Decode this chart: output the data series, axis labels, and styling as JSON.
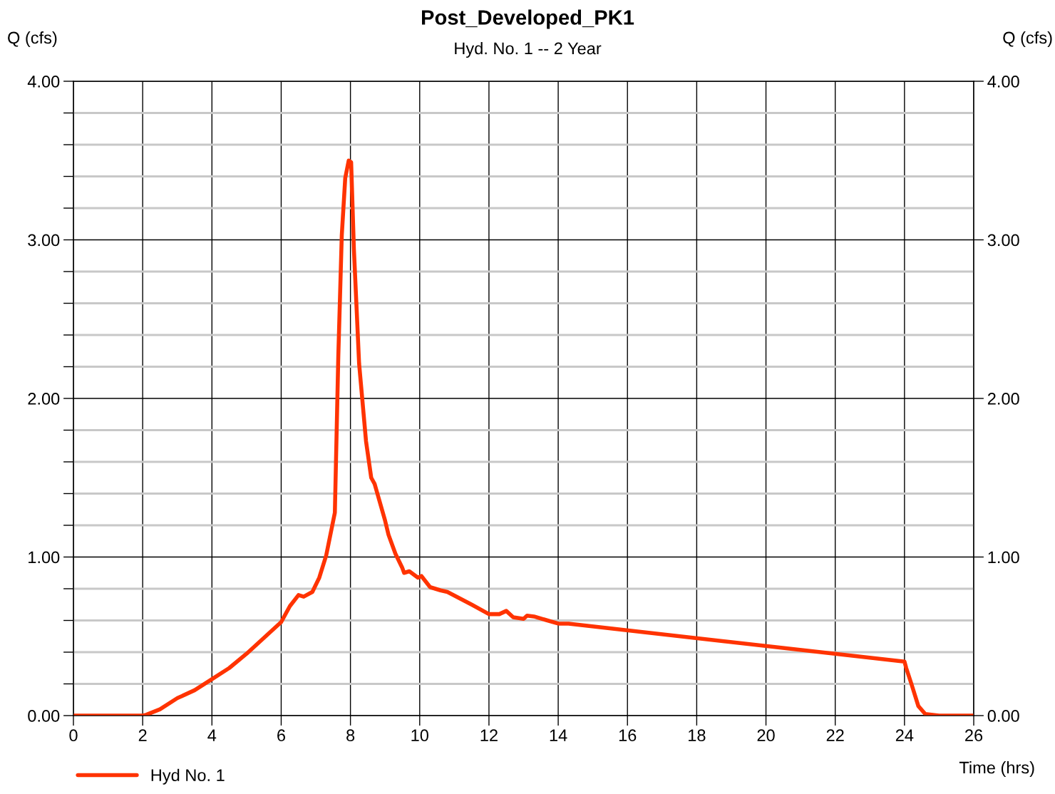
{
  "chart_data": {
    "type": "line",
    "title": "Post_Developed_PK1",
    "subtitle": "Hyd. No. 1 -- 2 Year",
    "xlabel": "Time (hrs)",
    "ylabel": "Q (cfs)",
    "y2label": "Q (cfs)",
    "x": [
      0,
      2.0,
      2.1,
      2.5,
      3,
      3.5,
      4,
      4.5,
      5,
      5.5,
      6,
      6.25,
      6.5,
      6.65,
      6.9,
      7.1,
      7.3,
      7.55,
      7.65,
      7.75,
      7.85,
      7.95,
      8.02,
      8.1,
      8.25,
      8.45,
      8.6,
      8.7,
      9.0,
      9.1,
      9.3,
      9.5,
      9.55,
      9.7,
      9.95,
      10.05,
      10.3,
      10.6,
      10.8,
      11.5,
      12,
      12.3,
      12.5,
      12.7,
      13.0,
      13.1,
      13.3,
      14,
      14.3,
      24.0,
      24.05,
      24.2,
      24.4,
      24.6,
      25,
      26
    ],
    "series": [
      {
        "name": "Hyd No. 1",
        "color": "#ff3300",
        "values": [
          0,
          0,
          0.005,
          0.04,
          0.11,
          0.16,
          0.23,
          0.3,
          0.39,
          0.49,
          0.59,
          0.69,
          0.76,
          0.75,
          0.78,
          0.87,
          1.01,
          1.28,
          2.27,
          3.03,
          3.39,
          3.5,
          3.49,
          2.94,
          2.22,
          1.73,
          1.5,
          1.46,
          1.23,
          1.14,
          1.02,
          0.93,
          0.9,
          0.91,
          0.87,
          0.88,
          0.81,
          0.79,
          0.78,
          0.7,
          0.64,
          0.64,
          0.66,
          0.62,
          0.61,
          0.63,
          0.625,
          0.58,
          0.58,
          0.34,
          0.3,
          0.2,
          0.06,
          0.01,
          0,
          0
        ]
      }
    ],
    "xlim": [
      0,
      26
    ],
    "xticks": [
      0,
      2,
      4,
      6,
      8,
      10,
      12,
      14,
      16,
      18,
      20,
      22,
      24,
      26
    ],
    "ylim": [
      0,
      4
    ],
    "yticks": [
      {
        "value": 0,
        "label": "0.00"
      },
      {
        "value": 0.2,
        "label": null
      },
      {
        "value": 0.4,
        "label": null
      },
      {
        "value": 0.6,
        "label": null
      },
      {
        "value": 0.8,
        "label": null
      },
      {
        "value": 1,
        "label": "1.00"
      },
      {
        "value": 1.2,
        "label": null
      },
      {
        "value": 1.4,
        "label": null
      },
      {
        "value": 1.6,
        "label": null
      },
      {
        "value": 1.8,
        "label": null
      },
      {
        "value": 2,
        "label": "2.00"
      },
      {
        "value": 2.2,
        "label": null
      },
      {
        "value": 2.4,
        "label": null
      },
      {
        "value": 2.6,
        "label": null
      },
      {
        "value": 2.8,
        "label": null
      },
      {
        "value": 3,
        "label": "3.00"
      },
      {
        "value": 3.2,
        "label": null
      },
      {
        "value": 3.4,
        "label": null
      },
      {
        "value": 3.6,
        "label": null
      },
      {
        "value": 3.8,
        "label": null
      },
      {
        "value": 4,
        "label": "4.00"
      }
    ],
    "y2lim": [
      0,
      4
    ],
    "y2ticks": [
      {
        "value": 0,
        "label": "0.00"
      },
      {
        "value": 1,
        "label": "1.00"
      },
      {
        "value": 2,
        "label": "2.00"
      },
      {
        "value": 3,
        "label": "3.00"
      },
      {
        "value": 4,
        "label": "4.00"
      }
    ],
    "grid": true,
    "legend": "bottom left",
    "marker": "none",
    "line_style": "solid"
  }
}
